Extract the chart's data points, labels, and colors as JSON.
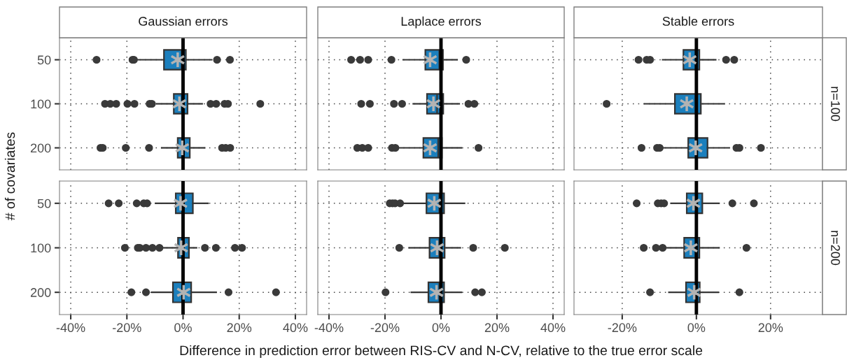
{
  "chart_data": [
    {
      "type": "box",
      "orientation": "horizontal",
      "title": "Gaussian errors",
      "ylabel": "# of covariates",
      "categories": [
        "50",
        "100",
        "200"
      ],
      "xlim": [
        -44,
        44
      ],
      "xticks": [
        {
          "value": -40,
          "label": null
        },
        {
          "value": -20,
          "label": null
        },
        {
          "value": 0,
          "label": null
        },
        {
          "value": 20,
          "label": null
        },
        {
          "value": 40,
          "label": null
        }
      ],
      "grid": true,
      "tick_labels": "y",
      "color": "#1b7fbd",
      "ref_lines": [
        {
          "axis": "x",
          "value": 0,
          "color": "#000000"
        }
      ],
      "boxes": [
        {
          "low": -17.8,
          "q1": -6.8,
          "median": -0.5,
          "q3": 1.0,
          "high": 10.2,
          "mean": -1.9,
          "outliers": [
            -30.8,
            -18.0,
            -17.5,
            12.1,
            16.7
          ]
        },
        {
          "low": -9.4,
          "q1": -3.3,
          "median": -0.3,
          "q3": 1.6,
          "high": 6.8,
          "mean": -1.3,
          "outliers": [
            -27.8,
            -25.9,
            -23.8,
            -19.8,
            -17.3,
            -11.9,
            -11.1,
            9.8,
            11.8,
            14.8,
            16.0,
            27.5
          ]
        },
        {
          "low": -7.6,
          "q1": -1.9,
          "median": 0.2,
          "q3": 2.4,
          "high": 7.7,
          "mean": -0.3,
          "outliers": [
            -29.4,
            -28.6,
            -20.4,
            -12.1,
            13.9,
            15.2,
            16.8
          ]
        }
      ]
    },
    {
      "type": "box",
      "orientation": "horizontal",
      "title": "Laplace errors",
      "categories": [
        "50",
        "100",
        "200"
      ],
      "xlim": [
        -44,
        44
      ],
      "xticks": [
        {
          "value": -40,
          "label": null
        },
        {
          "value": -20,
          "label": null
        },
        {
          "value": 0,
          "label": null
        },
        {
          "value": 20,
          "label": null
        },
        {
          "value": 40,
          "label": null
        }
      ],
      "grid": true,
      "tick_labels": false,
      "color": "#1b7fbd",
      "ref_lines": [
        {
          "axis": "x",
          "value": 0,
          "color": "#000000"
        }
      ],
      "boxes": [
        {
          "low": -13.5,
          "q1": -5.6,
          "median": -0.6,
          "q3": 0.7,
          "high": 5.7,
          "mean": -3.9,
          "outliers": [
            -32.1,
            -28.9,
            -26.0,
            -17.7,
            9.0
          ]
        },
        {
          "low": -9.9,
          "q1": -5.0,
          "median": -1.4,
          "q3": 0.8,
          "high": 6.5,
          "mean": -2.7,
          "outliers": [
            -28.5,
            -25.4,
            -16.8,
            -13.9,
            9.8,
            11.9
          ]
        },
        {
          "low": -15.2,
          "q1": -6.3,
          "median": -1.0,
          "q3": 0.3,
          "high": 7.3,
          "mean": -3.9,
          "outliers": [
            -29.9,
            -28.1,
            -26.0,
            -17.5,
            -16.3,
            13.4
          ]
        }
      ]
    },
    {
      "type": "box",
      "orientation": "horizontal",
      "title": "Stable errors",
      "y2label": "n=100",
      "categories": [
        "50",
        "100",
        "200"
      ],
      "xlim": [
        -33,
        34
      ],
      "xticks": [
        {
          "value": -20,
          "label": null
        },
        {
          "value": 0,
          "label": null
        },
        {
          "value": 20,
          "label": null
        }
      ],
      "grid": true,
      "tick_labels": false,
      "color": "#1b7fbd",
      "ref_lines": [
        {
          "axis": "x",
          "value": 0,
          "color": "#000000"
        }
      ],
      "boxes": [
        {
          "low": -9.1,
          "q1": -3.5,
          "median": -0.2,
          "q3": 0.8,
          "high": 5.2,
          "mean": -1.8,
          "outliers": [
            -15.6,
            -13.4,
            -12.5,
            8.0,
            10.2
          ]
        },
        {
          "low": -14.0,
          "q1": -5.8,
          "median": -0.2,
          "q3": 1.2,
          "high": 7.5,
          "mean": -2.6,
          "outliers": [
            -24.2
          ]
        },
        {
          "low": -9.3,
          "q1": -2.2,
          "median": 0.1,
          "q3": 3.0,
          "high": 8.8,
          "mean": -0.2,
          "outliers": [
            -14.8,
            -10.6,
            -9.9,
            10.8,
            11.6,
            17.4
          ]
        }
      ]
    },
    {
      "type": "box",
      "orientation": "horizontal",
      "categories": [
        "50",
        "100",
        "200"
      ],
      "xlim": [
        -44,
        44
      ],
      "xticks": [
        {
          "value": -40,
          "label": "-40%"
        },
        {
          "value": -20,
          "label": "-20%"
        },
        {
          "value": 0,
          "label": "0%"
        },
        {
          "value": 20,
          "label": "20%"
        },
        {
          "value": 40,
          "label": "40%"
        }
      ],
      "grid": true,
      "color": "#1b7fbd",
      "ref_lines": [
        {
          "axis": "x",
          "value": 0,
          "color": "#000000"
        }
      ],
      "boxes": [
        {
          "low": -9.8,
          "q1": -2.6,
          "median": 0.2,
          "q3": 3.5,
          "high": 8.9,
          "mean": -0.9,
          "outliers": [
            -26.5,
            -22.9,
            -16.5,
            -14.0,
            -12.8
          ]
        },
        {
          "low": -7.3,
          "q1": -1.8,
          "median": 0.2,
          "q3": 2.1,
          "high": 4.8,
          "mean": -0.7,
          "outliers": [
            -20.7,
            -16.1,
            -15.4,
            -13.2,
            -10.9,
            -8.4,
            7.8,
            11.7,
            18.5,
            21.0
          ]
        },
        {
          "low": -11.1,
          "q1": -3.6,
          "median": 0.2,
          "q3": 2.9,
          "high": 11.8,
          "mean": 0.2,
          "outliers": [
            -18.4,
            -13.2,
            16.2,
            33.1
          ]
        }
      ]
    },
    {
      "type": "box",
      "orientation": "horizontal",
      "xlabel": "Difference in prediction error between RIS-CV and N-CV, relative to the true error scale",
      "categories": [
        "50",
        "100",
        "200"
      ],
      "xlim": [
        -44,
        44
      ],
      "xticks": [
        {
          "value": -40,
          "label": "-40%"
        },
        {
          "value": -20,
          "label": "-20%"
        },
        {
          "value": 0,
          "label": "0%"
        },
        {
          "value": 20,
          "label": "20%"
        },
        {
          "value": 40,
          "label": "40%"
        }
      ],
      "grid": true,
      "tick_labels": "x",
      "color": "#1b7fbd",
      "ref_lines": [
        {
          "axis": "x",
          "value": 0,
          "color": "#000000"
        }
      ],
      "boxes": [
        {
          "low": -13.1,
          "q1": -5.2,
          "median": -0.6,
          "q3": 1.1,
          "high": 8.4,
          "mean": -2.4,
          "outliers": [
            -18.3,
            -17.3,
            -16.4,
            -14.6
          ]
        },
        {
          "low": -11.4,
          "q1": -4.1,
          "median": -0.6,
          "q3": 1.3,
          "high": 6.9,
          "mean": -1.4,
          "outliers": [
            -14.9,
            11.5,
            22.8
          ]
        },
        {
          "low": -10.6,
          "q1": -4.5,
          "median": -0.6,
          "q3": 1.1,
          "high": 7.3,
          "mean": -1.6,
          "outliers": [
            -19.8,
            12.2,
            14.6
          ]
        }
      ]
    },
    {
      "type": "box",
      "orientation": "horizontal",
      "y2label": "n=200",
      "categories": [
        "50",
        "100",
        "200"
      ],
      "xlim": [
        -33,
        34
      ],
      "xticks": [
        {
          "value": -20,
          "label": "-20%"
        },
        {
          "value": 0,
          "label": "0%"
        },
        {
          "value": 20,
          "label": "20%"
        }
      ],
      "grid": true,
      "tick_labels": "x",
      "color": "#1b7fbd",
      "ref_lines": [
        {
          "axis": "x",
          "value": 0,
          "color": "#000000"
        }
      ],
      "boxes": [
        {
          "low": -6.8,
          "q1": -2.6,
          "median": 0.1,
          "q3": 1.6,
          "high": 6.1,
          "mean": -0.8,
          "outliers": [
            -16.1,
            -10.4,
            -9.5,
            -8.7,
            9.7,
            15.5
          ]
        },
        {
          "low": -8.4,
          "q1": -3.3,
          "median": -0.2,
          "q3": 0.8,
          "high": 6.1,
          "mean": -1.5,
          "outliers": [
            -14.2,
            -10.9,
            -9.1,
            13.5
          ]
        },
        {
          "low": -7.4,
          "q1": -2.8,
          "median": -0.2,
          "q3": 0.9,
          "high": 5.9,
          "mean": -0.6,
          "outliers": [
            -12.5,
            11.6
          ]
        }
      ]
    }
  ]
}
